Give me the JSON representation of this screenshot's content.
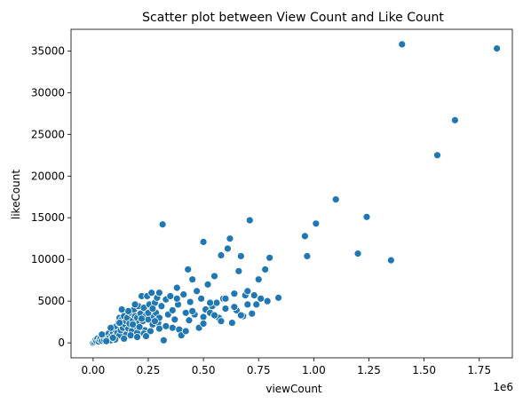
{
  "chart_data": {
    "type": "scatter",
    "title": "Scatter plot between View Count and Like Count",
    "xlabel": "viewCount",
    "ylabel": "likeCount",
    "x_offset_text": "1e6",
    "x_scale_factor": 1000000,
    "xlim": [
      -0.1,
      1.9
    ],
    "ylim": [
      -1800,
      37600
    ],
    "x_ticks": [
      0.0,
      0.25,
      0.5,
      0.75,
      1.0,
      1.25,
      1.5,
      1.75
    ],
    "x_tick_labels": [
      "0.00",
      "0.25",
      "0.50",
      "0.75",
      "1.00",
      "1.25",
      "1.50",
      "1.75"
    ],
    "y_ticks": [
      0,
      5000,
      10000,
      15000,
      20000,
      25000,
      30000,
      35000
    ],
    "y_tick_labels": [
      "0",
      "5000",
      "10000",
      "15000",
      "20000",
      "25000",
      "30000",
      "35000"
    ],
    "grid": false,
    "marker_color": "#1f77b4",
    "series": [
      {
        "points": [
          [
            0.0,
            0
          ],
          [
            0.005,
            100
          ],
          [
            0.01,
            300
          ],
          [
            0.015,
            200
          ],
          [
            0.02,
            500
          ],
          [
            0.025,
            150
          ],
          [
            0.03,
            400
          ],
          [
            0.035,
            600
          ],
          [
            0.04,
            250
          ],
          [
            0.045,
            800
          ],
          [
            0.05,
            350
          ],
          [
            0.055,
            700
          ],
          [
            0.06,
            900
          ],
          [
            0.065,
            450
          ],
          [
            0.07,
            1100
          ],
          [
            0.075,
            600
          ],
          [
            0.08,
            300
          ],
          [
            0.085,
            1000
          ],
          [
            0.09,
            1300
          ],
          [
            0.095,
            500
          ],
          [
            0.1,
            1600
          ],
          [
            0.1,
            800
          ],
          [
            0.105,
            2000
          ],
          [
            0.11,
            1200
          ],
          [
            0.115,
            2400
          ],
          [
            0.12,
            900
          ],
          [
            0.12,
            3000
          ],
          [
            0.125,
            1500
          ],
          [
            0.13,
            2800
          ],
          [
            0.135,
            1800
          ],
          [
            0.14,
            3200
          ],
          [
            0.145,
            2200
          ],
          [
            0.15,
            1000
          ],
          [
            0.15,
            2600
          ],
          [
            0.155,
            3000
          ],
          [
            0.16,
            1700
          ],
          [
            0.165,
            2300
          ],
          [
            0.17,
            3600
          ],
          [
            0.175,
            1400
          ],
          [
            0.18,
            2700
          ],
          [
            0.185,
            4000
          ],
          [
            0.19,
            3200
          ],
          [
            0.195,
            2000
          ],
          [
            0.2,
            1200
          ],
          [
            0.2,
            3000
          ],
          [
            0.205,
            4400
          ],
          [
            0.21,
            2400
          ],
          [
            0.215,
            3500
          ],
          [
            0.22,
            5600
          ],
          [
            0.225,
            2600
          ],
          [
            0.23,
            4200
          ],
          [
            0.235,
            1500
          ],
          [
            0.24,
            3300
          ],
          [
            0.245,
            5600
          ],
          [
            0.25,
            2800
          ],
          [
            0.255,
            4600
          ],
          [
            0.26,
            3800
          ],
          [
            0.265,
            6000
          ],
          [
            0.27,
            2200
          ],
          [
            0.275,
            3200
          ],
          [
            0.28,
            4800
          ],
          [
            0.285,
            3600
          ],
          [
            0.29,
            5400
          ],
          [
            0.295,
            2400
          ],
          [
            0.3,
            6000
          ],
          [
            0.3,
            3000
          ],
          [
            0.31,
            4400
          ],
          [
            0.315,
            14200
          ],
          [
            0.32,
            300
          ],
          [
            0.33,
            5200
          ],
          [
            0.34,
            3400
          ],
          [
            0.35,
            5600
          ],
          [
            0.36,
            1800
          ],
          [
            0.37,
            2800
          ],
          [
            0.38,
            6600
          ],
          [
            0.385,
            4600
          ],
          [
            0.39,
            1600
          ],
          [
            0.4,
            900
          ],
          [
            0.41,
            5800
          ],
          [
            0.42,
            3600
          ],
          [
            0.43,
            8800
          ],
          [
            0.435,
            2700
          ],
          [
            0.44,
            4900
          ],
          [
            0.45,
            7600
          ],
          [
            0.46,
            3400
          ],
          [
            0.47,
            6200
          ],
          [
            0.48,
            1800
          ],
          [
            0.49,
            5300
          ],
          [
            0.5,
            12100
          ],
          [
            0.5,
            3100
          ],
          [
            0.51,
            4000
          ],
          [
            0.52,
            7000
          ],
          [
            0.53,
            3600
          ],
          [
            0.54,
            4400
          ],
          [
            0.55,
            8000
          ],
          [
            0.56,
            4800
          ],
          [
            0.57,
            3000
          ],
          [
            0.58,
            10500
          ],
          [
            0.59,
            5300
          ],
          [
            0.6,
            4100
          ],
          [
            0.61,
            11300
          ],
          [
            0.62,
            12500
          ],
          [
            0.63,
            2400
          ],
          [
            0.64,
            5900
          ],
          [
            0.65,
            3900
          ],
          [
            0.66,
            8600
          ],
          [
            0.67,
            10400
          ],
          [
            0.68,
            3200
          ],
          [
            0.69,
            5700
          ],
          [
            0.7,
            4600
          ],
          [
            0.71,
            14700
          ],
          [
            0.72,
            3500
          ],
          [
            0.73,
            5700
          ],
          [
            0.75,
            7600
          ],
          [
            0.76,
            5300
          ],
          [
            0.78,
            8800
          ],
          [
            0.79,
            5000
          ],
          [
            0.8,
            10200
          ],
          [
            0.84,
            5400
          ],
          [
            0.96,
            12800
          ],
          [
            0.97,
            10400
          ],
          [
            1.01,
            14300
          ],
          [
            1.1,
            17200
          ],
          [
            1.2,
            10700
          ],
          [
            1.24,
            15100
          ],
          [
            1.35,
            9900
          ],
          [
            1.4,
            35800
          ],
          [
            1.56,
            22500
          ],
          [
            1.64,
            26700
          ],
          [
            1.83,
            35300
          ],
          [
            0.14,
            500
          ],
          [
            0.17,
            900
          ],
          [
            0.2,
            700
          ],
          [
            0.23,
            1100
          ],
          [
            0.26,
            1400
          ],
          [
            0.08,
            1800
          ],
          [
            0.12,
            2400
          ],
          [
            0.18,
            2200
          ],
          [
            0.22,
            2900
          ],
          [
            0.25,
            3600
          ],
          [
            0.28,
            2600
          ],
          [
            0.3,
            1700
          ],
          [
            0.24,
            800
          ],
          [
            0.16,
            3800
          ],
          [
            0.13,
            4000
          ],
          [
            0.19,
            4600
          ],
          [
            0.21,
            1900
          ],
          [
            0.27,
            4100
          ],
          [
            0.33,
            2000
          ],
          [
            0.36,
            3900
          ],
          [
            0.38,
            5300
          ],
          [
            0.42,
            1400
          ],
          [
            0.45,
            3800
          ],
          [
            0.5,
            2300
          ],
          [
            0.53,
            4800
          ],
          [
            0.55,
            3300
          ],
          [
            0.58,
            2600
          ],
          [
            0.6,
            5300
          ],
          [
            0.64,
            4300
          ],
          [
            0.67,
            3300
          ],
          [
            0.7,
            6200
          ],
          [
            0.74,
            4600
          ],
          [
            0.1,
            400
          ],
          [
            0.06,
            200
          ],
          [
            0.04,
            1000
          ],
          [
            0.09,
            600
          ]
        ]
      }
    ]
  }
}
